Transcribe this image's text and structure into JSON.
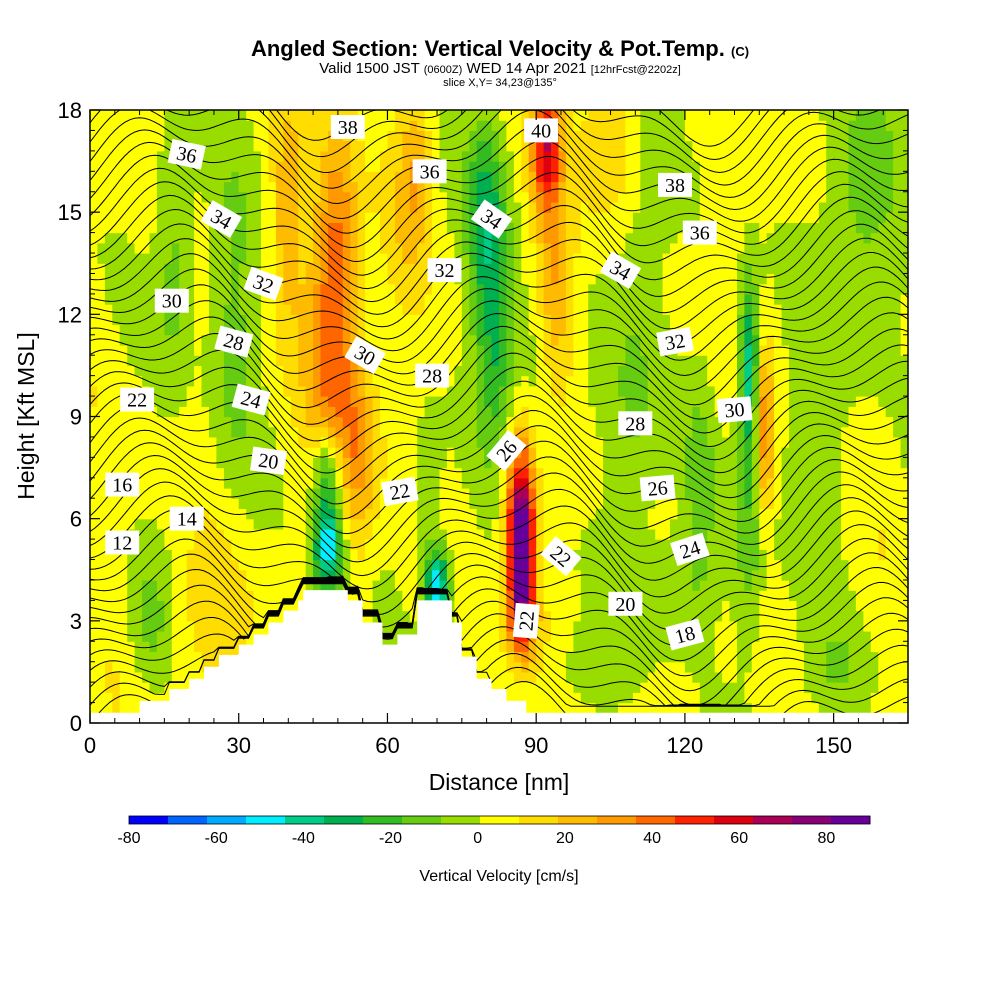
{
  "header": {
    "title": "Angled Section: Vertical Velocity & Pot.Temp.",
    "title_suffix": "(C)",
    "valid_prefix": "Valid 1500 JST",
    "valid_utc": "(0600Z)",
    "valid_date": "WED 14 Apr 2021",
    "forecast": "[12hrFcst@2202z]",
    "slice": "slice X,Y= 34,23@135°"
  },
  "chart_data": {
    "type": "heatmap",
    "xlabel": "Distance [nm]",
    "ylabel": "Height [Kft MSL]",
    "xlim": [
      0,
      165
    ],
    "ylim": [
      0,
      18
    ],
    "x_ticks": [
      "0",
      "30",
      "60",
      "90",
      "120",
      "150"
    ],
    "y_ticks": [
      "0",
      "3",
      "6",
      "9",
      "12",
      "15",
      "18"
    ],
    "colorbar": {
      "label": "Vertical Velocity [cm/s]",
      "range": [
        -80,
        90
      ],
      "tick_labels": [
        "-80",
        "-60",
        "-40",
        "-20",
        "0",
        "20",
        "40",
        "60",
        "80"
      ],
      "colors": [
        "#0000ff",
        "#0064ff",
        "#00aaff",
        "#00eeff",
        "#00cc88",
        "#00b050",
        "#33bb22",
        "#66cc11",
        "#99dd00",
        "#ffff00",
        "#ffdd00",
        "#ffbb00",
        "#ff9900",
        "#ff6600",
        "#ff2200",
        "#dd0011",
        "#aa0055",
        "#880077",
        "#660099"
      ]
    },
    "terrain_profile": [
      [
        0,
        0.3
      ],
      [
        10,
        0.3
      ],
      [
        10,
        0.65
      ],
      [
        16,
        0.65
      ],
      [
        16,
        1.0
      ],
      [
        20,
        1.0
      ],
      [
        20,
        1.3
      ],
      [
        23,
        1.3
      ],
      [
        23,
        1.65
      ],
      [
        26,
        1.65
      ],
      [
        26,
        2.0
      ],
      [
        30,
        2.0
      ],
      [
        30,
        2.3
      ],
      [
        33,
        2.3
      ],
      [
        33,
        2.6
      ],
      [
        36,
        2.6
      ],
      [
        36,
        2.95
      ],
      [
        39,
        2.95
      ],
      [
        39,
        3.3
      ],
      [
        42,
        3.3
      ],
      [
        42,
        3.6
      ],
      [
        43,
        3.6
      ],
      [
        43,
        3.9
      ],
      [
        52,
        3.9
      ],
      [
        52,
        3.6
      ],
      [
        55,
        3.6
      ],
      [
        55,
        2.95
      ],
      [
        59,
        2.95
      ],
      [
        59,
        2.3
      ],
      [
        62,
        2.3
      ],
      [
        62,
        2.6
      ],
      [
        66,
        2.6
      ],
      [
        66,
        3.6
      ],
      [
        73,
        3.6
      ],
      [
        73,
        2.95
      ],
      [
        75,
        2.95
      ],
      [
        75,
        1.95
      ],
      [
        78,
        1.95
      ],
      [
        78,
        1.3
      ],
      [
        81,
        1.3
      ],
      [
        81,
        1.0
      ],
      [
        84,
        1.0
      ],
      [
        84,
        0.65
      ],
      [
        88,
        0.65
      ],
      [
        88,
        0.3
      ],
      [
        165,
        0.3
      ]
    ],
    "velocity_features": [
      {
        "x": 17,
        "y": 14,
        "sx": 4,
        "sy": 4,
        "v": -18
      },
      {
        "x": 29,
        "y": 12,
        "sx": 5,
        "sy": 5,
        "v": -14
      },
      {
        "x": 48,
        "y": 11,
        "sx": 5,
        "sy": 4,
        "v": 25
      },
      {
        "x": 50,
        "y": 14,
        "sx": 4,
        "sy": 4,
        "v": 28
      },
      {
        "x": 40,
        "y": 15,
        "sx": 3,
        "sy": 3,
        "v": 22
      },
      {
        "x": 54,
        "y": 8,
        "sx": 4,
        "sy": 3,
        "v": 28
      },
      {
        "x": 48,
        "y": 5.2,
        "sx": 3,
        "sy": 1.5,
        "v": -60
      },
      {
        "x": 48,
        "y": 7.5,
        "sx": 3,
        "sy": 1.2,
        "v": -30
      },
      {
        "x": 70,
        "y": 4.0,
        "sx": 2.5,
        "sy": 1.2,
        "v": -60
      },
      {
        "x": 68,
        "y": 7,
        "sx": 3,
        "sy": 2,
        "v": -15
      },
      {
        "x": 64,
        "y": 15,
        "sx": 4,
        "sy": 3,
        "v": 10
      },
      {
        "x": 66,
        "y": 16.5,
        "sx": 3,
        "sy": 2,
        "v": 18
      },
      {
        "x": 80,
        "y": 15,
        "sx": 4,
        "sy": 3,
        "v": -35
      },
      {
        "x": 82,
        "y": 11,
        "sx": 4,
        "sy": 3,
        "v": -30
      },
      {
        "x": 90,
        "y": 10,
        "sx": 4,
        "sy": 3,
        "v": -15
      },
      {
        "x": 87,
        "y": 5,
        "sx": 2.5,
        "sy": 1.8,
        "v": 85
      },
      {
        "x": 87,
        "y": 7,
        "sx": 3,
        "sy": 2,
        "v": 45
      },
      {
        "x": 87,
        "y": 3,
        "sx": 3,
        "sy": 1.2,
        "v": 40
      },
      {
        "x": 92,
        "y": 17,
        "sx": 3,
        "sy": 2,
        "v": 55
      },
      {
        "x": 94,
        "y": 13,
        "sx": 4,
        "sy": 3,
        "v": 30
      },
      {
        "x": 110,
        "y": 13,
        "sx": 6,
        "sy": 4,
        "v": -12
      },
      {
        "x": 110,
        "y": 8,
        "sx": 6,
        "sy": 3,
        "v": -12
      },
      {
        "x": 118,
        "y": 4,
        "sx": 8,
        "sy": 2,
        "v": -12
      },
      {
        "x": 123,
        "y": 7,
        "sx": 3,
        "sy": 3,
        "v": -14
      },
      {
        "x": 133,
        "y": 10.5,
        "sx": 2,
        "sy": 2.5,
        "v": -45
      },
      {
        "x": 133,
        "y": 6,
        "sx": 3,
        "sy": 4,
        "v": -18
      },
      {
        "x": 136,
        "y": 8.5,
        "sx": 2,
        "sy": 2.5,
        "v": 35
      },
      {
        "x": 155,
        "y": 15,
        "sx": 8,
        "sy": 4,
        "v": -18
      },
      {
        "x": 145,
        "y": 7,
        "sx": 8,
        "sy": 3,
        "v": -10
      },
      {
        "x": 12,
        "y": 3,
        "sx": 4,
        "sy": 2,
        "v": -12
      },
      {
        "x": 25,
        "y": 3,
        "sx": 8,
        "sy": 2,
        "v": 12
      },
      {
        "x": 100,
        "y": 1.5,
        "sx": 6,
        "sy": 1.2,
        "v": -12
      },
      {
        "x": 150,
        "y": 1.5,
        "sx": 8,
        "sy": 1.5,
        "v": -10
      },
      {
        "x": 105,
        "y": 17,
        "sx": 6,
        "sy": 2,
        "v": 12
      }
    ],
    "contour_labels": [
      {
        "text": "38",
        "x": 52,
        "y": 17.5,
        "angle": 0
      },
      {
        "text": "40",
        "x": 91,
        "y": 17.4,
        "angle": 0
      },
      {
        "text": "36",
        "x": 19.5,
        "y": 16.7,
        "angle": 12
      },
      {
        "text": "36",
        "x": 68.5,
        "y": 16.2,
        "angle": 0
      },
      {
        "text": "38",
        "x": 118,
        "y": 15.8,
        "angle": 0
      },
      {
        "text": "34",
        "x": 26.5,
        "y": 14.8,
        "angle": 30
      },
      {
        "text": "34",
        "x": 81,
        "y": 14.8,
        "angle": 35
      },
      {
        "text": "36",
        "x": 123,
        "y": 14.4,
        "angle": 0
      },
      {
        "text": "32",
        "x": 71.5,
        "y": 13.3,
        "angle": 0
      },
      {
        "text": "34",
        "x": 107,
        "y": 13.3,
        "angle": 30
      },
      {
        "text": "32",
        "x": 35,
        "y": 12.9,
        "angle": 20
      },
      {
        "text": "30",
        "x": 16.5,
        "y": 12.4,
        "angle": 0
      },
      {
        "text": "32",
        "x": 118,
        "y": 11.2,
        "angle": -10
      },
      {
        "text": "28",
        "x": 29,
        "y": 11.2,
        "angle": 15
      },
      {
        "text": "30",
        "x": 55.5,
        "y": 10.8,
        "angle": 30
      },
      {
        "text": "28",
        "x": 69,
        "y": 10.2,
        "angle": 0
      },
      {
        "text": "22",
        "x": 9.5,
        "y": 9.5,
        "angle": 0
      },
      {
        "text": "24",
        "x": 32.5,
        "y": 9.5,
        "angle": 15
      },
      {
        "text": "30",
        "x": 130,
        "y": 9.2,
        "angle": -5
      },
      {
        "text": "28",
        "x": 110,
        "y": 8.8,
        "angle": 0
      },
      {
        "text": "26",
        "x": 84,
        "y": 8.0,
        "angle": -50
      },
      {
        "text": "20",
        "x": 36,
        "y": 7.7,
        "angle": 8
      },
      {
        "text": "16",
        "x": 6.5,
        "y": 7.0,
        "angle": 0
      },
      {
        "text": "22",
        "x": 62.5,
        "y": 6.8,
        "angle": -10
      },
      {
        "text": "26",
        "x": 114.5,
        "y": 6.9,
        "angle": -5
      },
      {
        "text": "14",
        "x": 19.5,
        "y": 6.0,
        "angle": 0
      },
      {
        "text": "12",
        "x": 6.5,
        "y": 5.3,
        "angle": 0
      },
      {
        "text": "24",
        "x": 121,
        "y": 5.1,
        "angle": -18
      },
      {
        "text": "22",
        "x": 95,
        "y": 4.9,
        "angle": 40
      },
      {
        "text": "20",
        "x": 108,
        "y": 3.5,
        "angle": 0
      },
      {
        "text": "22",
        "x": 88,
        "y": 3.0,
        "angle": -85
      },
      {
        "text": "18",
        "x": 120,
        "y": 2.6,
        "angle": -15
      }
    ]
  }
}
